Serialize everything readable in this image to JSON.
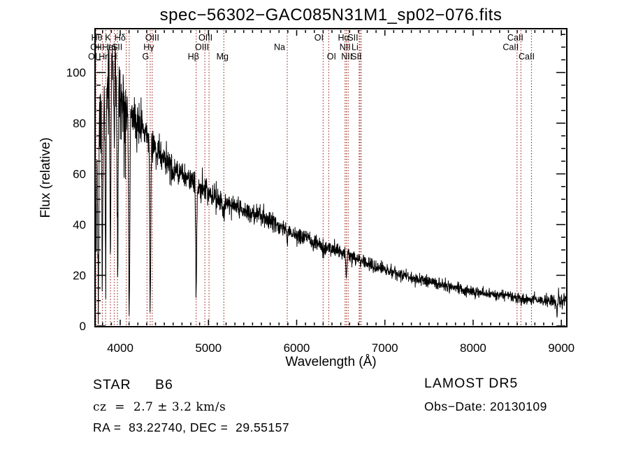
{
  "title": "spec−56302−GAC085N31M1_sp02−076.fits",
  "axes": {
    "xlabel": "Wavelength (Å)",
    "ylabel": "Flux (relative)",
    "x_ticks": [
      4000,
      5000,
      6000,
      7000,
      8000,
      9000
    ],
    "y_ticks": [
      0,
      20,
      40,
      60,
      80,
      100
    ]
  },
  "annotations": {
    "class_name": "STAR",
    "subclass": "B6",
    "cz": "cz  =  2.7 ± 3.2 km/s",
    "radec": "RA =  83.22740, DEC =  29.55157",
    "survey": "LAMOST DR5",
    "obs_date": "Obs−Date: 20130109"
  },
  "colors": {
    "marker_line": "#a2352c",
    "trace": "#000000",
    "frame": "#000000",
    "text": "#000000",
    "background": "#ffffff"
  },
  "chart_data": {
    "type": "line",
    "title": "spec−56302−GAC085N31M1_sp02−076.fits",
    "xlabel": "Wavelength (Å)",
    "ylabel": "Flux (relative)",
    "xlim": [
      3721,
      9055
    ],
    "ylim": [
      0,
      117
    ],
    "grid": false,
    "legend": null,
    "x_major_ticks": [
      4000,
      5000,
      6000,
      7000,
      8000,
      9000
    ],
    "y_major_ticks": [
      0,
      20,
      40,
      60,
      80,
      100
    ],
    "x_minor_step": 100,
    "y_minor_step": 5,
    "marker_lines": [
      {
        "wl": 3712,
        "label": "OI",
        "row": 2,
        "dx": -3
      },
      {
        "wl": 3727,
        "label": "OII",
        "row": 1,
        "dx": 0
      },
      {
        "wl": 3798,
        "label": "Hθ",
        "row": 0,
        "dx": -8
      },
      {
        "wl": 3835,
        "label": "Hη",
        "row": 2,
        "dx": -2
      },
      {
        "wl": 3889,
        "label": "HeI",
        "row": 1,
        "dx": -2
      },
      {
        "wl": 3933,
        "label": "K",
        "row": 0,
        "dx": -9
      },
      {
        "wl": 3968,
        "label": "H",
        "row": 2,
        "dx": -5
      },
      {
        "wl": 4068,
        "label": "SII",
        "row": 1,
        "dx": -13
      },
      {
        "wl": 4102,
        "label": "Hδ",
        "row": 0,
        "dx": -13
      },
      {
        "wl": 4304,
        "label": "G",
        "row": 2,
        "dx": -2
      },
      {
        "wl": 4340,
        "label": "Hγ",
        "row": 1,
        "dx": -2
      },
      {
        "wl": 4363,
        "label": "OIII",
        "row": 0,
        "dx": 0
      },
      {
        "wl": 4861,
        "label": "Hβ",
        "row": 2,
        "dx": -4
      },
      {
        "wl": 4959,
        "label": "OIII",
        "row": 1,
        "dx": -4
      },
      {
        "wl": 5007,
        "label": "OIII",
        "row": 0,
        "dx": -5
      },
      {
        "wl": 5175,
        "label": "Mg",
        "row": 2,
        "dx": -2
      },
      {
        "wl": 5893,
        "label": "Na",
        "row": 1,
        "dx": -11
      },
      {
        "wl": 6300,
        "label": "OI",
        "row": 0,
        "dx": -6
      },
      {
        "wl": 6364,
        "label": "OI",
        "row": 2,
        "dx": 4
      },
      {
        "wl": 6548,
        "label": "NII",
        "row": 1,
        "dx": 0
      },
      {
        "wl": 6563,
        "label": "Hα",
        "row": 0,
        "dx": -4
      },
      {
        "wl": 6584,
        "label": "NII",
        "row": 2,
        "dx": -2
      },
      {
        "wl": 6708,
        "label": "Li",
        "row": 1,
        "dx": -6
      },
      {
        "wl": 6717,
        "label": "SII",
        "row": 0,
        "dx": -10
      },
      {
        "wl": 6731,
        "label": "SII",
        "row": 2,
        "dx": -7
      },
      {
        "wl": 8498,
        "label": "CaII",
        "row": 1,
        "dx": -9
      },
      {
        "wl": 8542,
        "label": "CaII",
        "row": 0,
        "dx": -8
      },
      {
        "wl": 8662,
        "label": "CaII",
        "row": 2,
        "dx": -7
      }
    ],
    "continuum_points": [
      [
        3721,
        38
      ],
      [
        3745,
        62
      ],
      [
        3770,
        80
      ],
      [
        3800,
        90
      ],
      [
        3840,
        95
      ],
      [
        3880,
        99
      ],
      [
        3920,
        101
      ],
      [
        3950,
        103
      ],
      [
        3975,
        100
      ],
      [
        4000,
        93
      ],
      [
        4050,
        89
      ],
      [
        4100,
        86
      ],
      [
        4150,
        83
      ],
      [
        4200,
        80.5
      ],
      [
        4250,
        78
      ],
      [
        4300,
        75.5
      ],
      [
        4350,
        73
      ],
      [
        4400,
        70
      ],
      [
        4450,
        67.5
      ],
      [
        4500,
        65.5
      ],
      [
        4550,
        64
      ],
      [
        4600,
        62.5
      ],
      [
        4650,
        61
      ],
      [
        4700,
        60
      ],
      [
        4750,
        59
      ],
      [
        4800,
        57.5
      ],
      [
        4850,
        56.5
      ],
      [
        4900,
        55
      ],
      [
        4950,
        54
      ],
      [
        5000,
        53
      ],
      [
        5050,
        51.5
      ],
      [
        5100,
        50
      ],
      [
        5150,
        49
      ],
      [
        5200,
        48.2
      ],
      [
        5300,
        47
      ],
      [
        5400,
        45.5
      ],
      [
        5500,
        44.5
      ],
      [
        5600,
        43.2
      ],
      [
        5700,
        41.5
      ],
      [
        5800,
        39.5
      ],
      [
        5900,
        37.8
      ],
      [
        6000,
        36
      ],
      [
        6100,
        34.5
      ],
      [
        6200,
        33
      ],
      [
        6300,
        31.8
      ],
      [
        6400,
        30.5
      ],
      [
        6500,
        29.3
      ],
      [
        6600,
        27.8
      ],
      [
        6700,
        26.2
      ],
      [
        6800,
        24.8
      ],
      [
        6900,
        23.4
      ],
      [
        7000,
        22.2
      ],
      [
        7100,
        21.2
      ],
      [
        7200,
        20.2
      ],
      [
        7300,
        19
      ],
      [
        7400,
        18.2
      ],
      [
        7500,
        17.5
      ],
      [
        7600,
        16.8
      ],
      [
        7700,
        16
      ],
      [
        7800,
        15.2
      ],
      [
        7900,
        14.4
      ],
      [
        8000,
        13.6
      ],
      [
        8100,
        13
      ],
      [
        8200,
        12.6
      ],
      [
        8300,
        12.1
      ],
      [
        8400,
        11.7
      ],
      [
        8500,
        11.2
      ],
      [
        8600,
        10.8
      ],
      [
        8700,
        10.6
      ],
      [
        8800,
        10.2
      ],
      [
        8900,
        9.8
      ],
      [
        9000,
        9.5
      ],
      [
        9055,
        11
      ]
    ],
    "line_features": [
      {
        "wl": 3752,
        "amp": -50,
        "sigma": 5
      },
      {
        "wl": 3798,
        "amp": -62,
        "sigma": 6
      },
      {
        "wl": 3835,
        "amp": -68,
        "sigma": 6
      },
      {
        "wl": 3889,
        "amp": -60,
        "sigma": 6
      },
      {
        "wl": 3933,
        "amp": -25,
        "sigma": 4
      },
      {
        "wl": 3970,
        "amp": -70,
        "sigma": 7
      },
      {
        "wl": 4102,
        "amp": -78,
        "sigma": 7
      },
      {
        "wl": 4340,
        "amp": -66,
        "sigma": 6
      },
      {
        "wl": 4861,
        "amp": -44,
        "sigma": 6
      },
      {
        "wl": 5175,
        "amp": -2.5,
        "sigma": 9
      },
      {
        "wl": 5577,
        "amp": 6,
        "sigma": 3
      },
      {
        "wl": 5893,
        "amp": -3,
        "sigma": 7
      },
      {
        "wl": 6300,
        "amp": -1.8,
        "sigma": 5
      },
      {
        "wl": 6563,
        "amp": -11,
        "sigma": 6
      },
      {
        "wl": 6867,
        "amp": -1.5,
        "sigma": 5
      },
      {
        "wl": 7594,
        "amp": -1.5,
        "sigma": 7
      },
      {
        "wl": 8498,
        "amp": -1.5,
        "sigma": 4
      },
      {
        "wl": 8542,
        "amp": -1.6,
        "sigma": 4
      },
      {
        "wl": 8662,
        "amp": -1.5,
        "sigma": 4
      },
      {
        "wl": 8952,
        "amp": -8,
        "sigma": 3
      },
      {
        "wl": 8970,
        "amp": 5,
        "sigma": 3
      }
    ],
    "noise_envelope": [
      [
        3721,
        15
      ],
      [
        3760,
        11
      ],
      [
        3800,
        7.5
      ],
      [
        3950,
        7.5
      ],
      [
        4000,
        5
      ],
      [
        4150,
        4
      ],
      [
        4300,
        3.2
      ],
      [
        4500,
        2.8
      ],
      [
        4800,
        2.4
      ],
      [
        5100,
        2.1
      ],
      [
        5400,
        1.9
      ],
      [
        5800,
        1.7
      ],
      [
        6200,
        1.5
      ],
      [
        6600,
        1.3
      ],
      [
        7000,
        1.2
      ],
      [
        7600,
        1.1
      ],
      [
        8200,
        1.0
      ],
      [
        8700,
        1.1
      ],
      [
        8950,
        1.5
      ],
      [
        9055,
        1.7
      ]
    ],
    "noise_seed": 1337,
    "sample_step": 2.5
  }
}
